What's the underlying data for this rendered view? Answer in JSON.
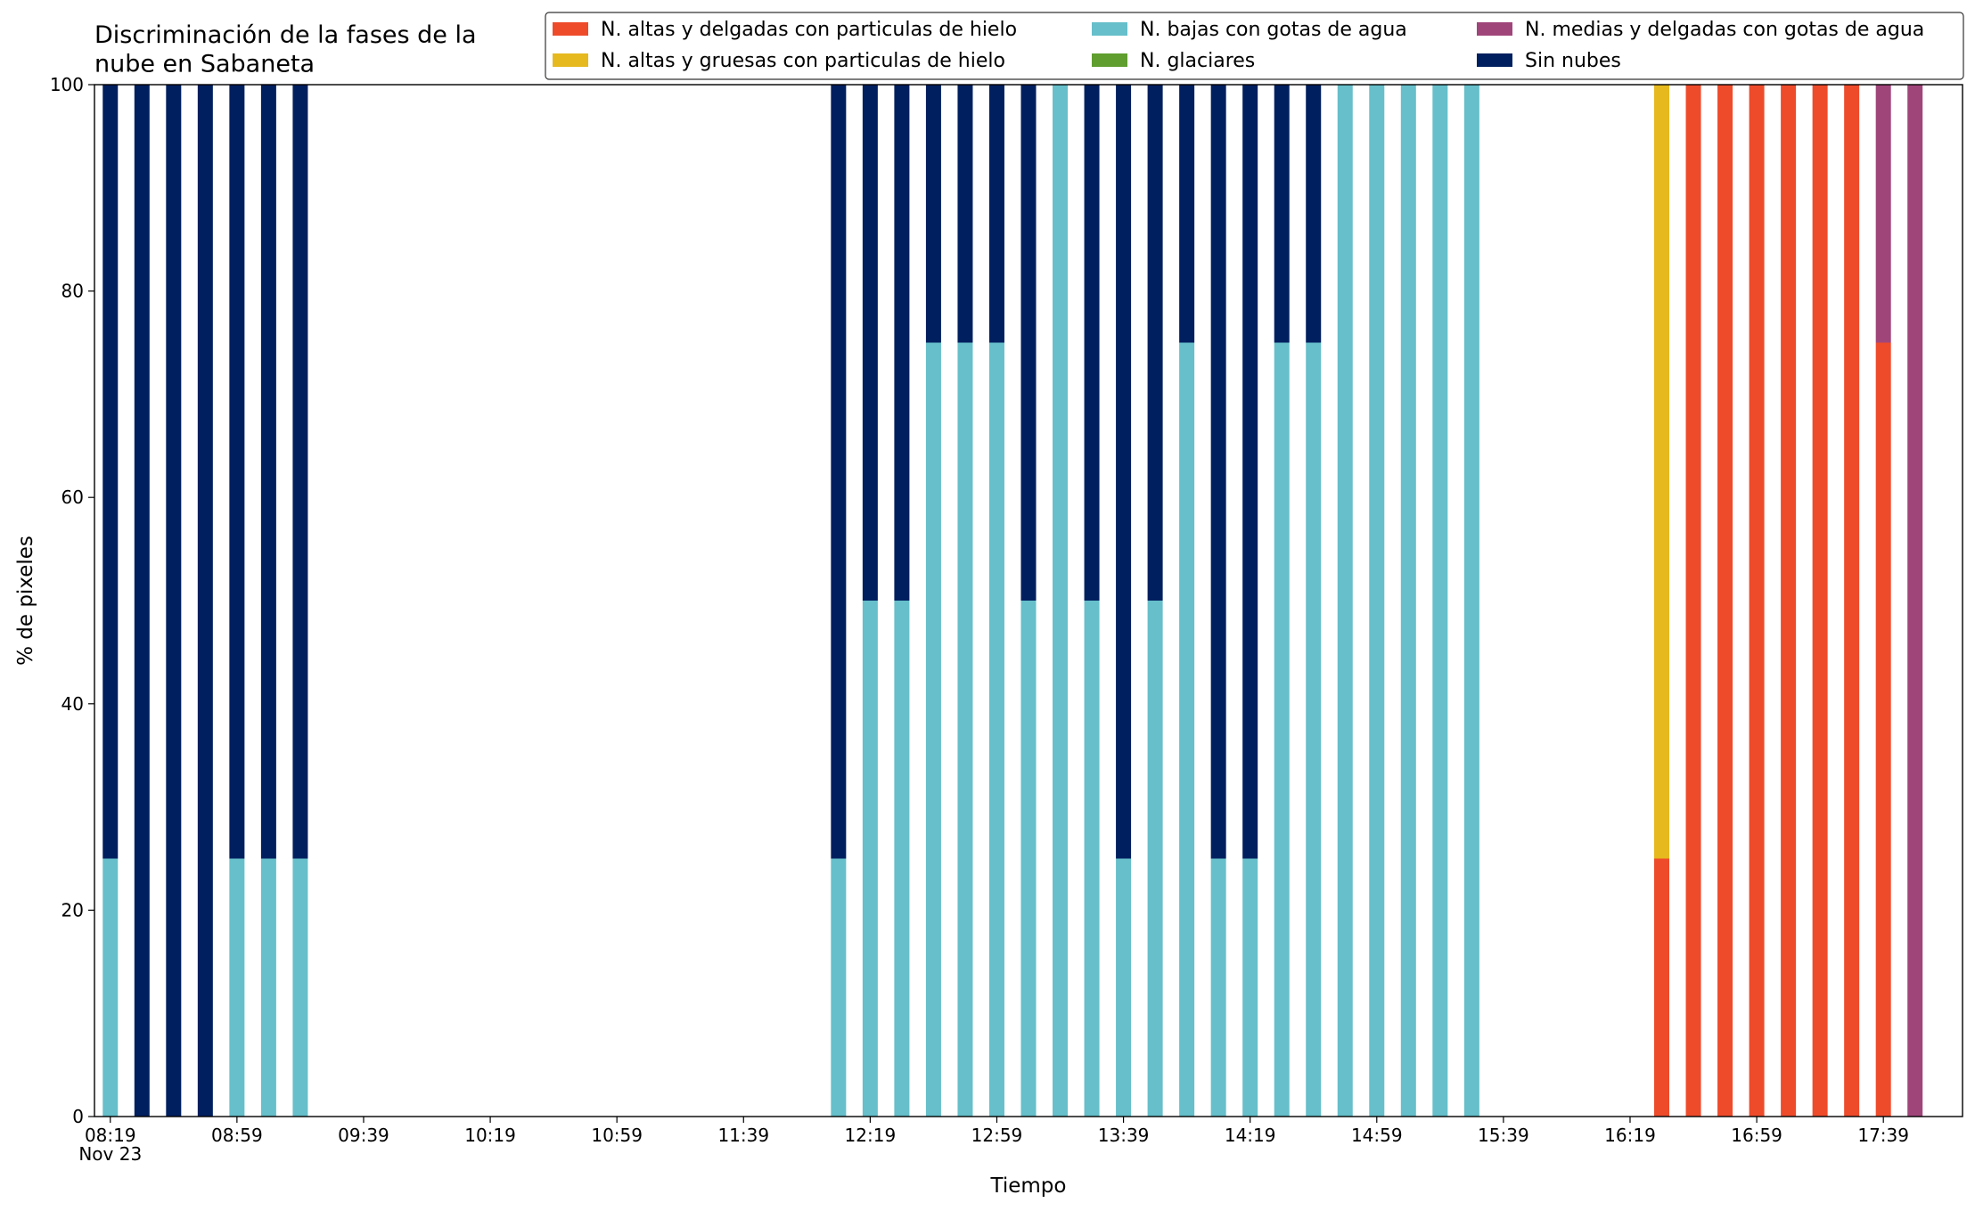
{
  "chart_data": {
    "type": "stacked_bar",
    "title": "Discriminación de la fases de la\nnube en Sabaneta",
    "xlabel": "Tiempo",
    "ylabel": "% de pixeles",
    "x": [
      "08:19",
      "08:29",
      "08:39",
      "08:49",
      "08:59",
      "09:09",
      "09:19",
      "12:09",
      "12:19",
      "12:29",
      "12:39",
      "12:49",
      "12:59",
      "13:09",
      "13:19",
      "13:29",
      "13:39",
      "13:49",
      "13:59",
      "14:09",
      "14:19",
      "14:29",
      "14:39",
      "14:49",
      "14:59",
      "15:09",
      "15:19",
      "15:29",
      "16:29",
      "16:39",
      "16:49",
      "16:59",
      "17:09",
      "17:19",
      "17:29",
      "17:39",
      "17:49"
    ],
    "series": [
      {
        "name": "N. altas y delgadas con particulas de hielo",
        "color": "#ee4b2b",
        "values": [
          0,
          0,
          0,
          0,
          0,
          0,
          0,
          0,
          0,
          0,
          0,
          0,
          0,
          0,
          0,
          0,
          0,
          0,
          0,
          0,
          0,
          0,
          0,
          0,
          0,
          0,
          0,
          0,
          25,
          100,
          100,
          100,
          100,
          100,
          100,
          75,
          0
        ]
      },
      {
        "name": "N. altas y gruesas con particulas de hielo",
        "color": "#e6b91e",
        "values": [
          0,
          0,
          0,
          0,
          0,
          0,
          0,
          0,
          0,
          0,
          0,
          0,
          0,
          0,
          0,
          0,
          0,
          0,
          0,
          0,
          0,
          0,
          0,
          0,
          0,
          0,
          0,
          0,
          75,
          0,
          0,
          0,
          0,
          0,
          0,
          0,
          0
        ]
      },
      {
        "name": "N. bajas con gotas de agua",
        "color": "#66bfca",
        "values": [
          25,
          0,
          0,
          0,
          25,
          25,
          25,
          25,
          50,
          50,
          75,
          75,
          75,
          50,
          100,
          50,
          25,
          50,
          75,
          25,
          25,
          75,
          75,
          100,
          100,
          100,
          100,
          100,
          0,
          0,
          0,
          0,
          0,
          0,
          0,
          0,
          0
        ]
      },
      {
        "name": "N. glaciares",
        "color": "#5f9e2f",
        "values": [
          0,
          0,
          0,
          0,
          0,
          0,
          0,
          0,
          0,
          0,
          0,
          0,
          0,
          0,
          0,
          0,
          0,
          0,
          0,
          0,
          0,
          0,
          0,
          0,
          0,
          0,
          0,
          0,
          0,
          0,
          0,
          0,
          0,
          0,
          0,
          0,
          0
        ]
      },
      {
        "name": "N. medias y delgadas con gotas de agua",
        "color": "#a0457a",
        "values": [
          0,
          0,
          0,
          0,
          0,
          0,
          0,
          0,
          0,
          0,
          0,
          0,
          0,
          0,
          0,
          0,
          0,
          0,
          0,
          0,
          0,
          0,
          0,
          0,
          0,
          0,
          0,
          0,
          0,
          0,
          0,
          0,
          0,
          0,
          0,
          25,
          100
        ]
      },
      {
        "name": "Sin nubes",
        "color": "#001f5f",
        "values": [
          75,
          100,
          100,
          100,
          75,
          75,
          75,
          75,
          50,
          50,
          25,
          25,
          25,
          50,
          0,
          50,
          75,
          50,
          25,
          75,
          75,
          25,
          25,
          0,
          0,
          0,
          0,
          0,
          0,
          0,
          0,
          0,
          0,
          0,
          0,
          0,
          0
        ]
      }
    ],
    "xlim": [
      "08:14",
      "18:04"
    ],
    "xticks": [
      {
        "value": "08:19",
        "label": "08:19\nNov 23"
      },
      "08:59",
      "09:39",
      "10:19",
      "10:59",
      "11:39",
      "12:19",
      "12:59",
      "13:39",
      "14:19",
      "14:59",
      "15:39",
      "16:19",
      "16:59",
      "17:39"
    ],
    "ylim": [
      0,
      100
    ],
    "yticks": [
      0,
      20,
      40,
      60,
      80,
      100
    ],
    "legend": "top right",
    "legend_columns": 3
  }
}
